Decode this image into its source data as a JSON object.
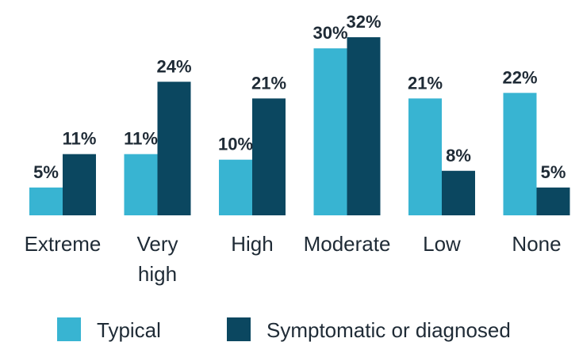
{
  "chart_data": {
    "type": "bar",
    "categories": [
      [
        "Extreme"
      ],
      [
        "Very",
        "high"
      ],
      [
        "High"
      ],
      [
        "Moderate"
      ],
      [
        "Low"
      ],
      [
        "None"
      ]
    ],
    "series": [
      {
        "name": "Typical",
        "values": [
          5,
          11,
          10,
          30,
          21,
          22
        ],
        "labels": [
          "5%",
          "11%",
          "10%",
          "30%",
          "21%",
          "22%"
        ],
        "color": "#38b4d2"
      },
      {
        "name": "Symptomatic or diagnosed",
        "values": [
          11,
          24,
          21,
          32,
          8,
          5
        ],
        "labels": [
          "11%",
          "24%",
          "21%",
          "32%",
          "8%",
          "5%"
        ],
        "color": "#0b4760"
      }
    ],
    "ylim": [
      0,
      33
    ],
    "grid": false,
    "legend_position": "bottom"
  }
}
